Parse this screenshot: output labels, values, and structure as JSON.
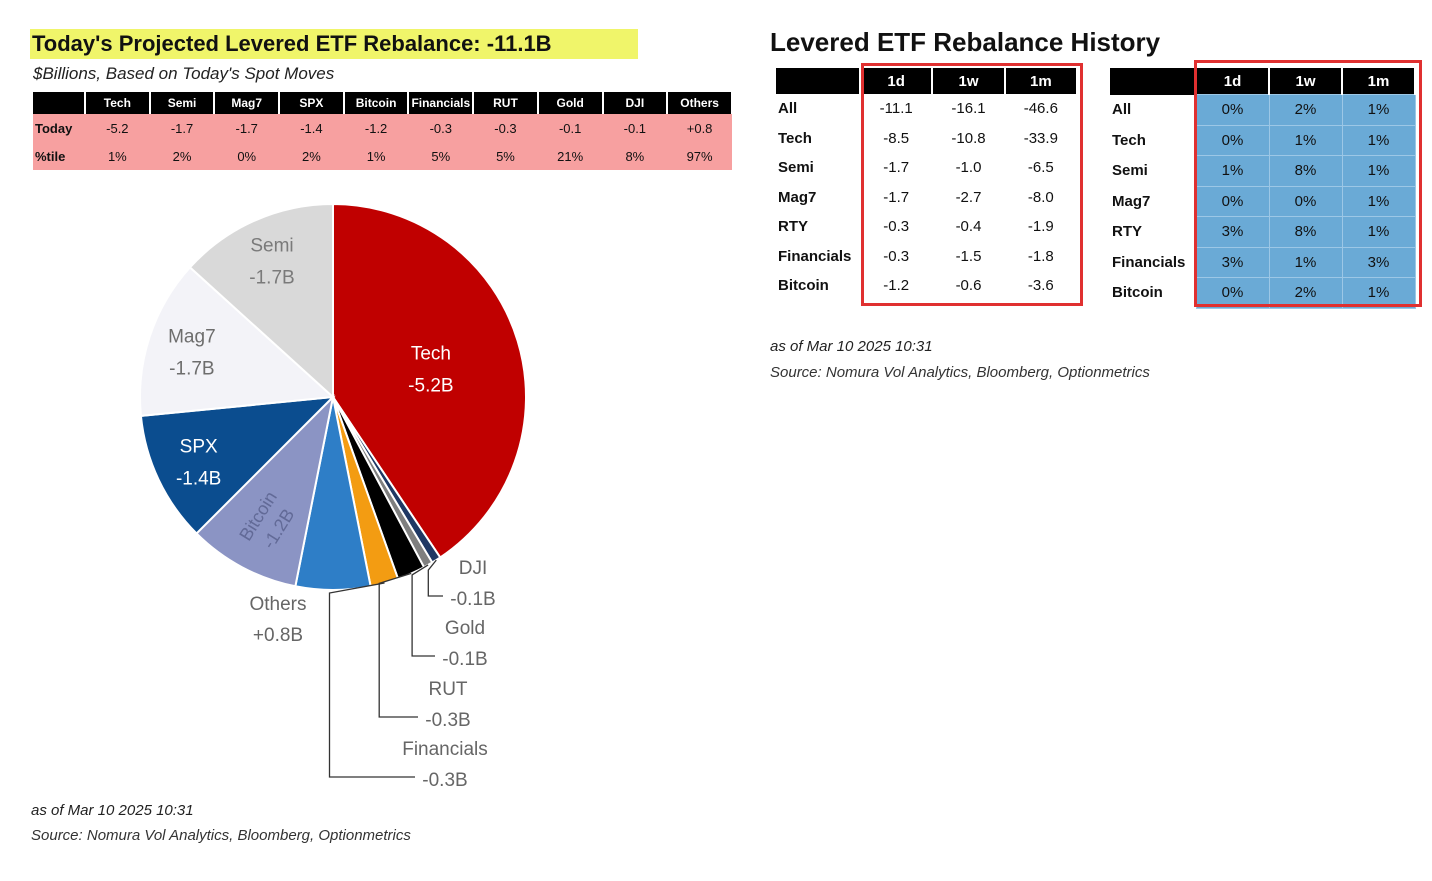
{
  "left": {
    "title": "Today's Projected Levered ETF Rebalance: -11.1B",
    "subtitle": "$Billions, Based on Today's Spot Moves",
    "table": {
      "headers": [
        "",
        "Tech",
        "Semi",
        "Mag7",
        "SPX",
        "Bitcoin",
        "Financials",
        "RUT",
        "Gold",
        "DJI",
        "Others"
      ],
      "rows": [
        {
          "label": "Today",
          "values": [
            "-5.2",
            "-1.7",
            "-1.7",
            "-1.4",
            "-1.2",
            "-0.3",
            "-0.3",
            "-0.1",
            "-0.1",
            "+0.8"
          ]
        },
        {
          "label": "%tile",
          "values": [
            "1%",
            "2%",
            "0%",
            "2%",
            "1%",
            "5%",
            "5%",
            "21%",
            "8%",
            "97%"
          ]
        }
      ]
    },
    "footnote_date": "as of Mar 10 2025 10:31",
    "footnote_source": "Source: Nomura Vol Analytics, Bloomberg, Optionmetrics"
  },
  "chart_data": {
    "type": "pie",
    "slices": [
      {
        "label": "Tech",
        "value_label": "-5.2B",
        "value": 5.2,
        "color": "#c00000"
      },
      {
        "label": "DJI",
        "value_label": "-0.1B",
        "value": 0.1,
        "color": "#1f3864"
      },
      {
        "label": "Gold",
        "value_label": "-0.1B",
        "value": 0.1,
        "color": "#7f7f7f"
      },
      {
        "label": "RUT",
        "value_label": "-0.3B",
        "value": 0.3,
        "color": "#000000"
      },
      {
        "label": "Financials",
        "value_label": "-0.3B",
        "value": 0.3,
        "color": "#f39c12"
      },
      {
        "label": "Others",
        "value_label": "+0.8B",
        "value": 0.8,
        "color": "#2e7ec7"
      },
      {
        "label": "Bitcoin",
        "value_label": "-1.2B",
        "value": 1.2,
        "color": "#8b94c4"
      },
      {
        "label": "SPX",
        "value_label": "-1.4B",
        "value": 1.4,
        "color": "#0b4d8f"
      },
      {
        "label": "Mag7",
        "value_label": "-1.7B",
        "value": 1.7,
        "color": "#f3f3f8"
      },
      {
        "label": "Semi",
        "value_label": "-1.7B",
        "value": 1.7,
        "color": "#d9d9d9"
      }
    ]
  },
  "right": {
    "title": "Levered ETF Rebalance History",
    "row_labels": [
      "All",
      "Tech",
      "Semi",
      "Mag7",
      "RTY",
      "Financials",
      "Bitcoin"
    ],
    "value_table": {
      "headers": [
        "1d",
        "1w",
        "1m"
      ],
      "rows": [
        [
          "-11.1",
          "-16.1",
          "-46.6"
        ],
        [
          "-8.5",
          "-10.8",
          "-33.9"
        ],
        [
          "-1.7",
          "-1.0",
          "-6.5"
        ],
        [
          "-1.7",
          "-2.7",
          "-8.0"
        ],
        [
          "-0.3",
          "-0.4",
          "-1.9"
        ],
        [
          "-0.3",
          "-1.5",
          "-1.8"
        ],
        [
          "-1.2",
          "-0.6",
          "-3.6"
        ]
      ]
    },
    "pct_table": {
      "headers": [
        "1d",
        "1w",
        "1m"
      ],
      "rows": [
        [
          "0%",
          "2%",
          "1%"
        ],
        [
          "0%",
          "1%",
          "1%"
        ],
        [
          "1%",
          "8%",
          "1%"
        ],
        [
          "0%",
          "0%",
          "1%"
        ],
        [
          "3%",
          "8%",
          "1%"
        ],
        [
          "3%",
          "1%",
          "3%"
        ],
        [
          "0%",
          "2%",
          "1%"
        ]
      ]
    },
    "footnote_date": "as of Mar 10 2025 10:31",
    "footnote_source": "Source: Nomura Vol Analytics, Bloomberg, Optionmetrics"
  }
}
